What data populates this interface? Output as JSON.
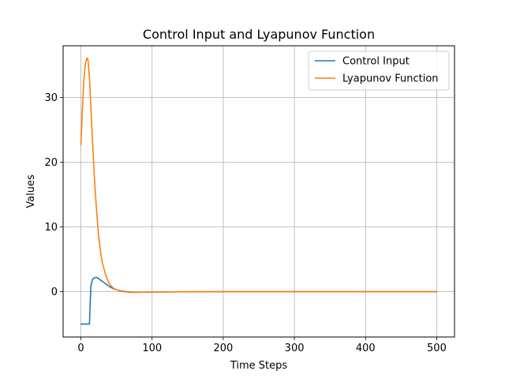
{
  "chart_data": {
    "type": "line",
    "title": "Control Input and Lyapunov Function",
    "xlabel": "Time Steps",
    "ylabel": "Values",
    "xlim": [
      -25,
      525
    ],
    "ylim": [
      -7,
      38
    ],
    "xticks": [
      0,
      100,
      200,
      300,
      400,
      500
    ],
    "yticks": [
      0,
      10,
      20,
      30
    ],
    "grid": true,
    "legend": "top-right",
    "series": [
      {
        "name": "Control Input",
        "color": "#1f77b4",
        "x": [
          0,
          5,
          10,
          12,
          13,
          14,
          16,
          18,
          20,
          22,
          25,
          30,
          35,
          40,
          45,
          50,
          55,
          60,
          70,
          80,
          100,
          150,
          200,
          300,
          400,
          500
        ],
        "y": [
          -5,
          -5,
          -5,
          -5,
          -1.8,
          0.8,
          1.8,
          2.1,
          2.2,
          2.2,
          2.0,
          1.6,
          1.2,
          0.8,
          0.5,
          0.3,
          0.15,
          0.05,
          -0.05,
          -0.08,
          -0.05,
          -0.02,
          0,
          0,
          0,
          0
        ]
      },
      {
        "name": "Lyapunov Function",
        "color": "#ff7f0e",
        "x": [
          0,
          2,
          4,
          6,
          8,
          9,
          10,
          12,
          14,
          16,
          18,
          20,
          22,
          25,
          28,
          30,
          35,
          40,
          45,
          50,
          55,
          60,
          70,
          80,
          100,
          150,
          200,
          300,
          400,
          500
        ],
        "y": [
          22.7,
          28.0,
          32.5,
          35.0,
          36.0,
          36.1,
          35.8,
          33.0,
          28.5,
          24.0,
          19.5,
          15.8,
          12.5,
          8.5,
          5.8,
          4.5,
          2.5,
          1.2,
          0.6,
          0.3,
          0.1,
          0.0,
          -0.1,
          -0.1,
          -0.05,
          0,
          0,
          0,
          0,
          0
        ]
      }
    ]
  }
}
